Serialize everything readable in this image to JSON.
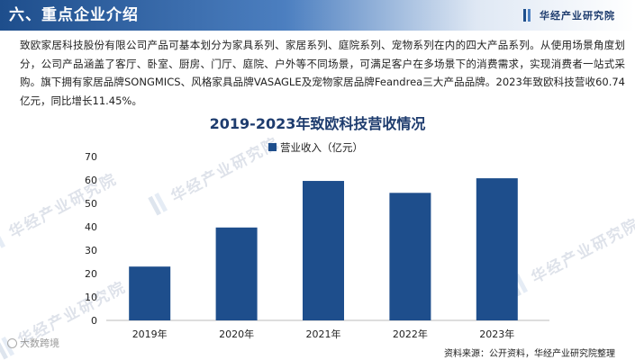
{
  "header": {
    "section_title": "六、重点企业介绍",
    "logo_text": "华经产业研究院"
  },
  "intro": {
    "paragraph": "致欧家居科技股份有限公司产品可基本划分为家具系列、家居系列、庭院系列、宠物系列在内的四大产品系列。从使用场景角度划分，公司产品涵盖了客厅、卧室、厨房、门厅、庭院、户外等不同场景，可满足客户在多场景下的消费需求，实现消费者一站式采购。旗下拥有家居品牌SONGMICS、风格家具品牌VASAGLE及宠物家居品牌Feandrea三大产品品牌。2023年致欧科技营收60.74亿元，同比增长11.45%。"
  },
  "watermark": {
    "text": "华经产业研究院"
  },
  "chart_data": {
    "type": "bar",
    "title": "2019-2023年致欧科技营收情况",
    "categories": [
      "2019年",
      "2020年",
      "2021年",
      "2022年",
      "2023年"
    ],
    "series": [
      {
        "name": "营业收入（亿元）",
        "values": [
          23.0,
          39.7,
          59.6,
          54.5,
          60.74
        ]
      }
    ],
    "ylim": [
      0,
      70
    ],
    "yticks": [
      "0",
      "10",
      "20",
      "30",
      "40",
      "50",
      "60",
      "70"
    ],
    "ytick_values": [
      0,
      10,
      20,
      30,
      40,
      50,
      60,
      70
    ],
    "xlabel": "",
    "ylabel": "",
    "grid": false,
    "legend_position": "top-center",
    "bar_color": "#1e4e8c"
  },
  "source": {
    "text": "资料来源：公开资料，华经产业研究院整理"
  },
  "footer": {
    "brand": "大数跨境"
  }
}
